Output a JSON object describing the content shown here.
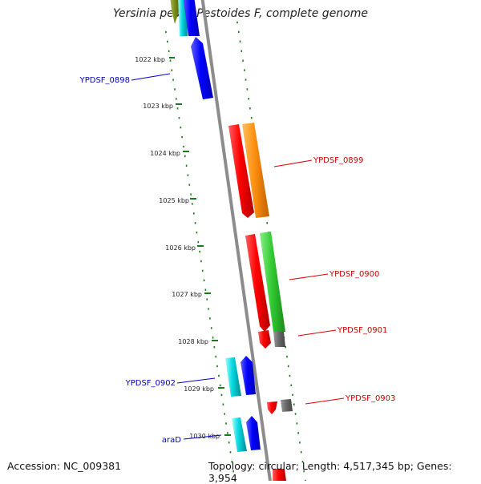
{
  "title": "Yersinia pestis Pestoides F, complete genome",
  "footer": {
    "accession": "Accession: NC_009381",
    "summary": "Topology: circular; Length: 4,517,345 bp; Genes: 3,954"
  },
  "ticks": [
    "1022 kbp",
    "1023 kbp",
    "1024 kbp",
    "1025 kbp",
    "1026 kbp",
    "1027 kbp",
    "1028 kbp",
    "1029 kbp",
    "1030 kbp"
  ],
  "gene_labels": {
    "ypdsf0898": "YPDSF_0898",
    "ypdsf0899": "YPDSF_0899",
    "ypdsf0900": "YPDSF_0900",
    "ypdsf0901": "YPDSF_0901",
    "ypdsf0902": "YPDSF_0902",
    "ypdsf0903": "YPDSF_0903",
    "arad": "araD"
  },
  "colors": {
    "blue": "#0000ee",
    "cyan": "#00c8d0",
    "red": "#ee0000",
    "orange": "#ff8c00",
    "green": "#33cc33",
    "gray": "#666666",
    "olive": "#7a8c1a",
    "backbone": "#8c8c8c",
    "tick": "#1a7a1a"
  }
}
